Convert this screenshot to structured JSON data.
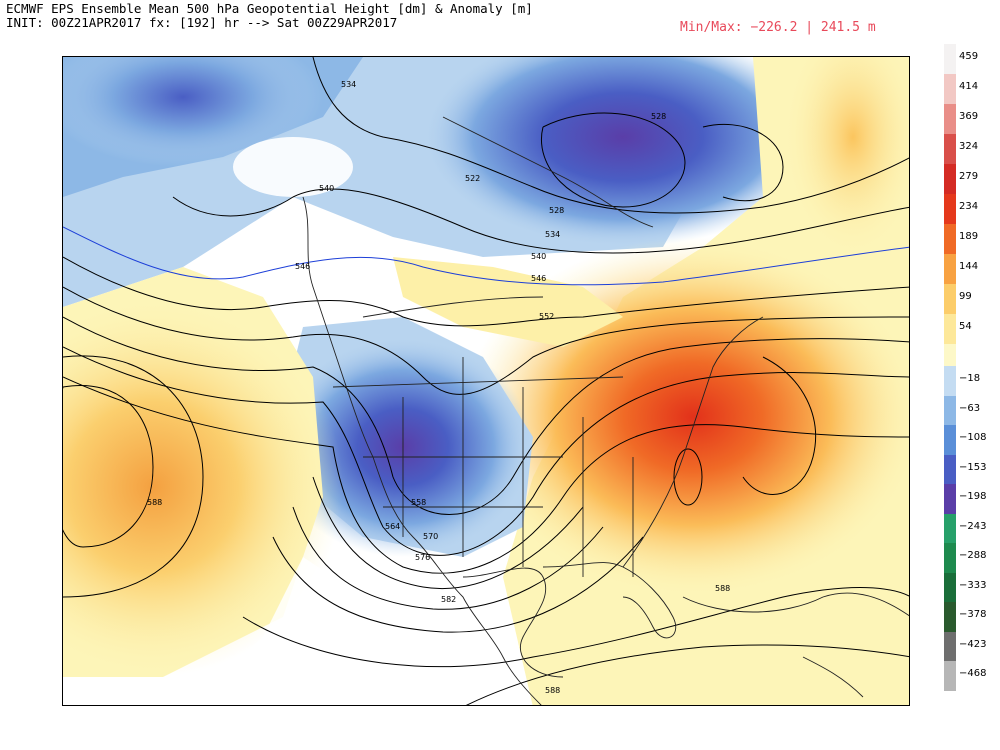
{
  "header": {
    "title_line1": "ECMWF EPS Ensemble Mean 500 hPa Geopotential Height [dm] & Anomaly [m]",
    "title_line2": "INIT: 00Z21APR2017 fx: [192] hr --> Sat 00Z29APR2017",
    "minmax": "Min/Max: −226.2 | 241.5 m"
  },
  "colors": {
    "positive_weak": "#fdf5b8",
    "positive_mid": "#fbc55e",
    "positive_strong": "#f07a2c",
    "positive_max": "#e8361c",
    "negative_weak": "#b8d4ef",
    "negative_mid": "#4f86d2",
    "negative_strong": "#3d4fb8",
    "negative_max": "#6a3fa8",
    "contour_highlight": "#1d3fd8"
  },
  "colorbar": {
    "positive": [
      {
        "label": "459",
        "color": "#f4f2f2"
      },
      {
        "label": "414",
        "color": "#f2c8c4"
      },
      {
        "label": "369",
        "color": "#e98e88"
      },
      {
        "label": "324",
        "color": "#d94f4a"
      },
      {
        "label": "279",
        "color": "#d42b24"
      },
      {
        "label": "234",
        "color": "#e5391c"
      },
      {
        "label": "189",
        "color": "#f06a26"
      },
      {
        "label": "144",
        "color": "#f8a242"
      },
      {
        "label": "99",
        "color": "#fccd6a"
      },
      {
        "label": "54",
        "color": "#fde89a"
      }
    ],
    "zero_band": {
      "label": "",
      "color": "#fdf8c8"
    },
    "negative": [
      {
        "label": "−18",
        "color": "#c4dcf2"
      },
      {
        "label": "−63",
        "color": "#8db8e6"
      },
      {
        "label": "−108",
        "color": "#5a8fd8"
      },
      {
        "label": "−153",
        "color": "#4a5ec4"
      },
      {
        "label": "−198",
        "color": "#5a3ea8"
      },
      {
        "label": "−243",
        "color": "#27a06a"
      },
      {
        "label": "−288",
        "color": "#1e8a4e"
      },
      {
        "label": "−333",
        "color": "#1a6e3a"
      },
      {
        "label": "−378",
        "color": "#2a5a2e"
      },
      {
        "label": "−423",
        "color": "#6e6e6e"
      },
      {
        "label": "−468",
        "color": "#b6b6b6"
      }
    ]
  },
  "contour_labels": [
    "534",
    "528",
    "540",
    "546",
    "522",
    "528",
    "534",
    "540",
    "546",
    "552",
    "588",
    "558",
    "564",
    "570",
    "576",
    "582",
    "588",
    "588"
  ]
}
